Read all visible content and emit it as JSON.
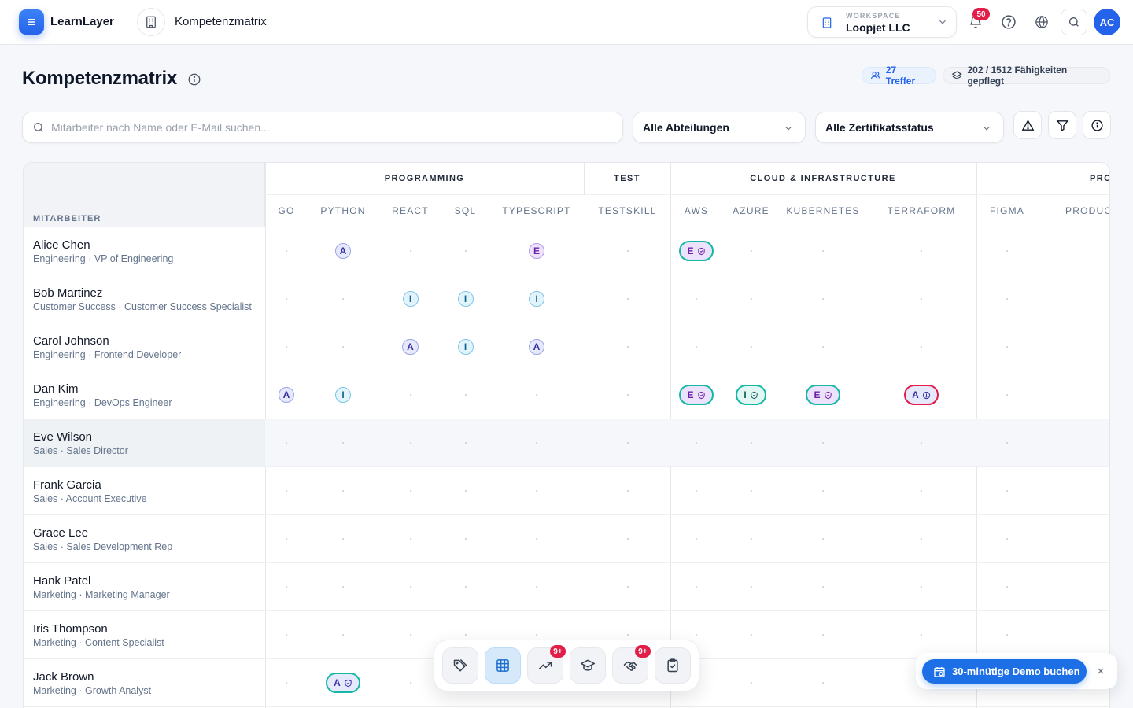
{
  "app": {
    "name": "LearnLayer",
    "page_title": "Kompetenzmatrix"
  },
  "workspace": {
    "caption": "WORKSPACE",
    "name": "Loopjet LLC"
  },
  "notifications": {
    "count": "50"
  },
  "user": {
    "initials": "AC"
  },
  "header": {
    "title": "Kompetenzmatrix",
    "hits": "27 Treffer",
    "skills_maintained": "202 / 1512 Fähigkeiten gepflegt"
  },
  "filters": {
    "search_placeholder": "Mitarbeiter nach Name oder E-Mail suchen...",
    "department": "Alle Abteilungen",
    "cert_status": "Alle Zertifikatsstatus"
  },
  "matrix": {
    "employee_header": "MITARBEITER",
    "groups": [
      "PROGRAMMING",
      "TEST",
      "CLOUD & INFRASTRUCTURE",
      "PRO"
    ],
    "skills": [
      "GO",
      "PYTHON",
      "REACT",
      "SQL",
      "TYPESCRIPT",
      "TESTSKILL",
      "AWS",
      "AZURE",
      "KUBERNETES",
      "TERRAFORM",
      "FIGMA",
      "PRODUCT I"
    ],
    "rows": [
      {
        "name": "Alice Chen",
        "sub": "Engineering · VP of Engineering",
        "cells": [
          "",
          "A",
          "",
          "",
          "E",
          "",
          "E*",
          "",
          "",
          "",
          "",
          ""
        ]
      },
      {
        "name": "Bob Martinez",
        "sub": "Customer Success · Customer Success Specialist",
        "cells": [
          "",
          "",
          "I",
          "I",
          "I",
          "",
          "",
          "",
          "",
          "",
          "",
          ""
        ]
      },
      {
        "name": "Carol Johnson",
        "sub": "Engineering · Frontend Developer",
        "cells": [
          "",
          "",
          "A",
          "I",
          "A",
          "",
          "",
          "",
          "",
          "",
          "",
          ""
        ]
      },
      {
        "name": "Dan Kim",
        "sub": "Engineering · DevOps Engineer",
        "cells": [
          "A",
          "I",
          "",
          "",
          "",
          "",
          "E*",
          "I*",
          "E*",
          "A!",
          "",
          ""
        ]
      },
      {
        "name": "Eve Wilson",
        "sub": "Sales · Sales Director",
        "cells": [
          "",
          "",
          "",
          "",
          "",
          "",
          "",
          "",
          "",
          "",
          "",
          ""
        ]
      },
      {
        "name": "Frank Garcia",
        "sub": "Sales · Account Executive",
        "cells": [
          "",
          "",
          "",
          "",
          "",
          "",
          "",
          "",
          "",
          "",
          "",
          ""
        ]
      },
      {
        "name": "Grace Lee",
        "sub": "Sales · Sales Development Rep",
        "cells": [
          "",
          "",
          "",
          "",
          "",
          "",
          "",
          "",
          "",
          "",
          "",
          ""
        ]
      },
      {
        "name": "Hank Patel",
        "sub": "Marketing · Marketing Manager",
        "cells": [
          "",
          "",
          "",
          "",
          "",
          "",
          "",
          "",
          "",
          "",
          "",
          ""
        ]
      },
      {
        "name": "Iris Thompson",
        "sub": "Marketing · Content Specialist",
        "cells": [
          "",
          "",
          "",
          "",
          "",
          "",
          "",
          "",
          "",
          "",
          "",
          ""
        ]
      },
      {
        "name": "Jack Brown",
        "sub": "Marketing · Growth Analyst",
        "cells": [
          "",
          "A*",
          "",
          "",
          "",
          "",
          "",
          "",
          "",
          "",
          "",
          ""
        ]
      }
    ]
  },
  "dock": {
    "items": [
      {
        "icon": "tags-icon",
        "badge": ""
      },
      {
        "icon": "grid-icon",
        "badge": ""
      },
      {
        "icon": "trending-up-icon",
        "badge": "9+"
      },
      {
        "icon": "graduation-cap-icon",
        "badge": ""
      },
      {
        "icon": "handshake-icon",
        "badge": "9+"
      },
      {
        "icon": "clipboard-check-icon",
        "badge": ""
      }
    ]
  },
  "promo": {
    "label": "30-minütige Demo buchen"
  },
  "colors": {
    "accent": "#2563eb",
    "danger": "#e11d48",
    "cert_ok": "#14b8a6"
  }
}
